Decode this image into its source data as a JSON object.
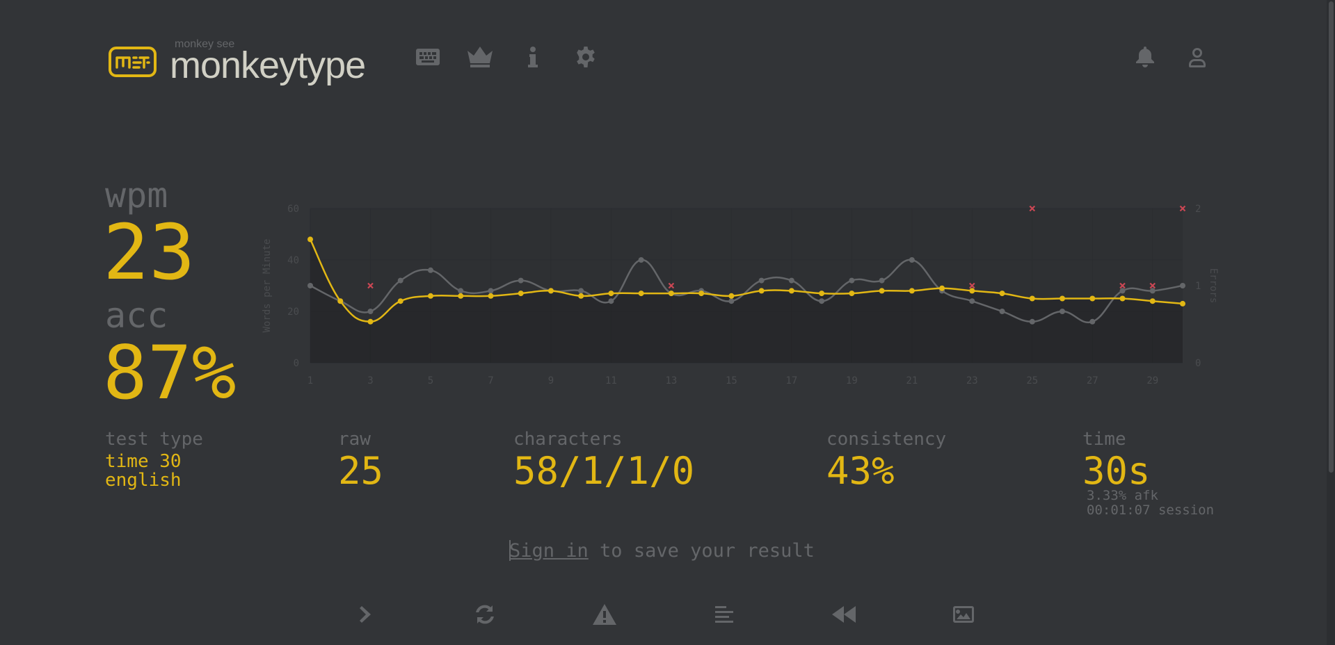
{
  "header": {
    "logo_top": "monkey see",
    "logo_text": "monkeytype",
    "icons": [
      "keyboard-icon",
      "crown-icon",
      "info-icon",
      "gear-icon",
      "bell-icon",
      "user-icon"
    ]
  },
  "stats": {
    "wpm_label": "wpm",
    "wpm_value": "23",
    "acc_label": "acc",
    "acc_value": "87%",
    "test_type_label": "test type",
    "test_type_line1": "time 30",
    "test_type_line2": "english",
    "raw_label": "raw",
    "raw_value": "25",
    "characters_label": "characters",
    "characters_value": "58/1/1/0",
    "consistency_label": "consistency",
    "consistency_value": "43%",
    "time_label": "time",
    "time_value": "30s",
    "afk": "3.33% afk",
    "session": "00:01:07 session"
  },
  "signin": {
    "link": "Sign in",
    "rest": " to save your result"
  },
  "bottom_icons": [
    "next-test-icon",
    "restart-icon",
    "report-icon",
    "words-history-icon",
    "replay-icon",
    "screenshot-icon"
  ],
  "colors": {
    "background": "#323437",
    "sub": "#646669",
    "main": "#e2b714",
    "text": "#d1d0c5",
    "error": "#ca4754",
    "raw_line": "#646669"
  },
  "chart_data": {
    "type": "line",
    "ylabel": "Words per Minute",
    "y2label": "Errors",
    "ylim": [
      0,
      60
    ],
    "y2lim": [
      0,
      2
    ],
    "yticks": [
      0,
      20,
      40,
      60
    ],
    "y2ticks": [
      0,
      1,
      2
    ],
    "x": [
      1,
      2,
      3,
      4,
      5,
      6,
      7,
      8,
      9,
      10,
      11,
      12,
      13,
      14,
      15,
      16,
      17,
      18,
      19,
      20,
      21,
      22,
      23,
      24,
      25,
      26,
      27,
      28,
      29,
      30
    ],
    "xticks": [
      1,
      3,
      5,
      7,
      9,
      11,
      13,
      15,
      17,
      19,
      21,
      23,
      25,
      27,
      29
    ],
    "series": [
      {
        "role": "wpm",
        "values": [
          48,
          24,
          16,
          24,
          26,
          26,
          26,
          27,
          28,
          26,
          27,
          27,
          27,
          27,
          26,
          28,
          28,
          27,
          27,
          28,
          28,
          29,
          28,
          27,
          25,
          25,
          25,
          25,
          24,
          23
        ]
      },
      {
        "role": "raw",
        "values": [
          30,
          24,
          20,
          32,
          36,
          28,
          28,
          32,
          28,
          28,
          24,
          40,
          27,
          28,
          24,
          32,
          32,
          24,
          32,
          32,
          40,
          28,
          24,
          20,
          16,
          20,
          16,
          28,
          28,
          30
        ]
      }
    ],
    "errors": [
      {
        "x": 3,
        "count": 1
      },
      {
        "x": 13,
        "count": 1
      },
      {
        "x": 23,
        "count": 1
      },
      {
        "x": 25,
        "count": 2
      },
      {
        "x": 28,
        "count": 1
      },
      {
        "x": 29,
        "count": 1
      },
      {
        "x": 30,
        "count": 2
      }
    ]
  }
}
